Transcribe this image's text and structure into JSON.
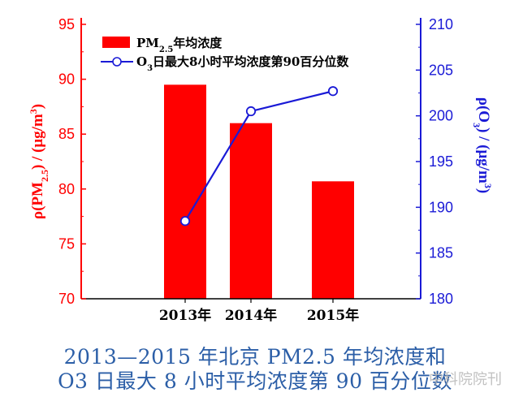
{
  "chart_data": {
    "type": "bar+line",
    "categories": [
      "2013年",
      "2014年",
      "2015年"
    ],
    "series": [
      {
        "name_main": "PM",
        "name_sub": "2.5",
        "name_rest": "年均浓度",
        "type": "bar",
        "axis": "left",
        "color": "#ff0000",
        "values": [
          89.5,
          86.0,
          80.7
        ]
      },
      {
        "name_main": "O",
        "name_sub": "3",
        "name_rest": "日最大8小时平均浓度第90百分位数",
        "type": "line",
        "axis": "right",
        "color": "#1a1ad6",
        "values": [
          188.5,
          200.5,
          202.7
        ]
      }
    ],
    "y_left": {
      "label_pre": "ρ(PM",
      "label_sub": "2.5",
      "label_post": ") / (μg/m",
      "label_sup": "3",
      "label_end": ")",
      "ylim": [
        70,
        95
      ],
      "ticks": [
        70,
        75,
        80,
        85,
        90,
        95
      ],
      "color": "#ff0000"
    },
    "y_right": {
      "label_pre": "ρ(O",
      "label_sub": "3",
      "label_post": ") / (μg/m",
      "label_sup": "3",
      "label_end": ")",
      "ylim": [
        180,
        210
      ],
      "ticks": [
        180,
        185,
        190,
        195,
        200,
        205,
        210
      ],
      "color": "#1a1ad6"
    },
    "legend_position": "top-left"
  },
  "caption": {
    "line1": "2013—2015 年北京 PM2.5 年均浓度和",
    "line2": "O3 日最大 8 小时平均浓度第 90 百分位数"
  },
  "watermark": "中科院院刊"
}
